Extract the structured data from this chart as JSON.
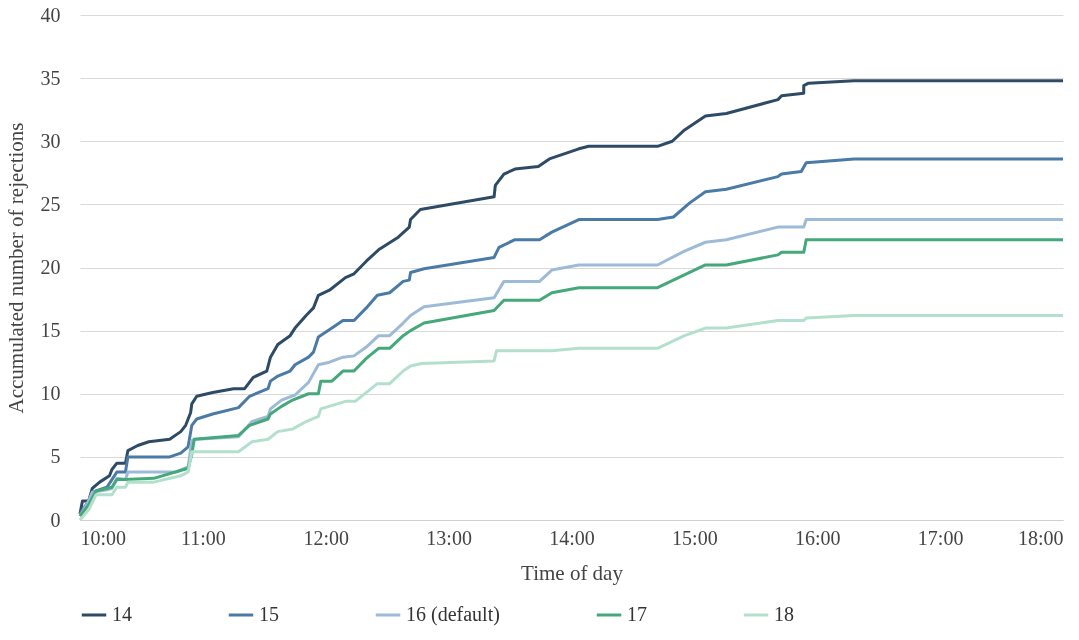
{
  "chart_data": {
    "type": "line",
    "xlabel": "Time of day",
    "ylabel": "Accumulated number of rejections",
    "xlim": [
      10,
      18
    ],
    "xticks": [
      {
        "value": 10,
        "label": "10:00"
      },
      {
        "value": 11,
        "label": "11:00"
      },
      {
        "value": 12,
        "label": "12:00"
      },
      {
        "value": 13,
        "label": "13:00"
      },
      {
        "value": 14,
        "label": "14:00"
      },
      {
        "value": 15,
        "label": "15:00"
      },
      {
        "value": 16,
        "label": "16:00"
      },
      {
        "value": 17,
        "label": "17:00"
      },
      {
        "value": 18,
        "label": "18:00"
      }
    ],
    "ylim": [
      0,
      40
    ],
    "yticks": [
      0,
      5,
      10,
      15,
      20,
      25,
      30,
      35,
      40
    ],
    "grid": "y",
    "legend": "bottom",
    "marker": "none",
    "line_style": "solid",
    "series": [
      {
        "name": "14",
        "color": "#2e4b66",
        "x": [
          10.0,
          10.02,
          10.07,
          10.1,
          10.16,
          10.24,
          10.26,
          10.3,
          10.37,
          10.39,
          10.47,
          10.56,
          10.73,
          10.82,
          10.86,
          10.9,
          10.91,
          10.95,
          11.08,
          11.25,
          11.34,
          11.41,
          11.52,
          11.55,
          11.61,
          11.71,
          11.75,
          11.84,
          11.9,
          11.94,
          12.03,
          12.16,
          12.23,
          12.33,
          12.43,
          12.59,
          12.68,
          12.69,
          12.77,
          13.37,
          13.38,
          13.45,
          13.54,
          13.73,
          13.82,
          14.06,
          14.14,
          14.7,
          14.82,
          14.92,
          15.09,
          15.26,
          15.68,
          15.71,
          15.89,
          15.89,
          15.93,
          16.3,
          18.0
        ],
        "values": [
          0.5,
          1.5,
          1.5,
          2.5,
          3,
          3.5,
          4,
          4.5,
          4.5,
          5.5,
          5.9,
          6.2,
          6.4,
          7,
          7.5,
          8.5,
          9.2,
          9.8,
          10.1,
          10.4,
          10.4,
          11.3,
          11.8,
          12.9,
          13.9,
          14.6,
          15.2,
          16.2,
          16.8,
          17.8,
          18.2,
          19.2,
          19.5,
          20.5,
          21.4,
          22.4,
          23.2,
          23.8,
          24.6,
          25.6,
          26.5,
          27.4,
          27.8,
          28,
          28.6,
          29.4,
          29.6,
          29.6,
          30,
          30.9,
          32,
          32.2,
          33.3,
          33.6,
          33.8,
          34.4,
          34.6,
          34.8,
          34.8
        ]
      },
      {
        "name": "15",
        "color": "#4a7aa6",
        "x": [
          10.0,
          10.07,
          10.1,
          10.22,
          10.26,
          10.3,
          10.37,
          10.39,
          10.73,
          10.82,
          10.88,
          10.91,
          10.95,
          11.08,
          11.29,
          11.38,
          11.53,
          11.55,
          11.61,
          11.71,
          11.75,
          11.86,
          11.9,
          11.94,
          12.05,
          12.14,
          12.23,
          12.33,
          12.42,
          12.52,
          12.63,
          12.68,
          12.69,
          12.8,
          13.37,
          13.41,
          13.54,
          13.74,
          13.84,
          14.06,
          14.7,
          14.83,
          14.96,
          15.09,
          15.26,
          15.68,
          15.71,
          15.87,
          15.91,
          16.3,
          18.0
        ],
        "values": [
          0.5,
          1.5,
          2.2,
          2.6,
          3.2,
          3.8,
          3.8,
          5,
          5,
          5.3,
          5.8,
          7.5,
          8,
          8.4,
          8.9,
          9.8,
          10.4,
          11,
          11.4,
          11.8,
          12.3,
          12.9,
          13.3,
          14.5,
          15.2,
          15.8,
          15.8,
          16.8,
          17.8,
          18,
          18.9,
          19,
          19.6,
          19.9,
          20.8,
          21.6,
          22.2,
          22.2,
          22.8,
          23.8,
          23.8,
          24,
          25.1,
          26,
          26.2,
          27.2,
          27.4,
          27.6,
          28.3,
          28.6,
          28.6
        ]
      },
      {
        "name": "16 (default)",
        "color": "#9dbbd6",
        "x": [
          10.0,
          10.07,
          10.1,
          10.22,
          10.26,
          10.3,
          10.37,
          10.39,
          10.78,
          10.88,
          10.91,
          10.95,
          11.29,
          11.4,
          11.53,
          11.55,
          11.64,
          11.75,
          11.86,
          11.94,
          12.03,
          12.14,
          12.23,
          12.33,
          12.43,
          12.52,
          12.63,
          12.69,
          12.8,
          13.37,
          13.45,
          13.74,
          13.84,
          14.06,
          14.7,
          14.92,
          15.09,
          15.26,
          15.68,
          15.89,
          15.91,
          18.0
        ],
        "values": [
          0.3,
          1.5,
          2.2,
          2.4,
          2.5,
          3.3,
          3.2,
          3.8,
          3.8,
          4.2,
          6.3,
          6.4,
          6.6,
          7.8,
          8.2,
          8.8,
          9.5,
          9.9,
          10.9,
          12.3,
          12.5,
          12.9,
          13,
          13.7,
          14.6,
          14.6,
          15.6,
          16.2,
          16.9,
          17.6,
          18.9,
          18.9,
          19.8,
          20.2,
          20.2,
          21.3,
          22,
          22.2,
          23.2,
          23.2,
          23.8,
          23.8
        ]
      },
      {
        "name": "17",
        "color": "#45a87a",
        "x": [
          10.0,
          10.07,
          10.13,
          10.26,
          10.3,
          10.37,
          10.6,
          10.88,
          10.91,
          10.93,
          11.29,
          11.38,
          11.53,
          11.55,
          11.64,
          11.73,
          11.86,
          11.94,
          11.96,
          12.05,
          12.14,
          12.23,
          12.33,
          12.43,
          12.52,
          12.63,
          12.69,
          12.8,
          13.37,
          13.45,
          13.74,
          13.84,
          14.06,
          14.7,
          15.09,
          15.26,
          15.68,
          15.71,
          15.89,
          15.91,
          18.0
        ],
        "values": [
          0.3,
          1.2,
          2.3,
          2.6,
          3.2,
          3.2,
          3.3,
          4.1,
          5.2,
          6.4,
          6.7,
          7.5,
          8,
          8.4,
          9,
          9.5,
          10,
          10,
          11,
          11,
          11.8,
          11.8,
          12.8,
          13.6,
          13.6,
          14.6,
          15,
          15.6,
          16.6,
          17.4,
          17.4,
          18,
          18.4,
          18.4,
          20.2,
          20.2,
          21,
          21.2,
          21.2,
          22.2,
          22.2
        ]
      },
      {
        "name": "18",
        "color": "#b2e0cc",
        "x": [
          10.0,
          10.07,
          10.13,
          10.26,
          10.3,
          10.37,
          10.39,
          10.6,
          10.82,
          10.88,
          10.91,
          11.29,
          11.4,
          11.53,
          11.61,
          11.73,
          11.84,
          11.94,
          11.96,
          12.16,
          12.24,
          12.42,
          12.52,
          12.63,
          12.69,
          12.78,
          13.37,
          13.39,
          13.84,
          14.06,
          14.7,
          14.92,
          15.09,
          15.26,
          15.68,
          15.89,
          15.91,
          16.3,
          18.0
        ],
        "values": [
          0,
          0.8,
          2,
          2,
          2.6,
          2.6,
          3,
          3,
          3.5,
          3.8,
          5.4,
          5.4,
          6.2,
          6.4,
          7,
          7.2,
          7.8,
          8.2,
          8.8,
          9.4,
          9.4,
          10.8,
          10.8,
          11.8,
          12.2,
          12.4,
          12.6,
          13.4,
          13.4,
          13.6,
          13.6,
          14.6,
          15.2,
          15.2,
          15.8,
          15.8,
          16,
          16.2,
          16.2
        ]
      }
    ]
  }
}
